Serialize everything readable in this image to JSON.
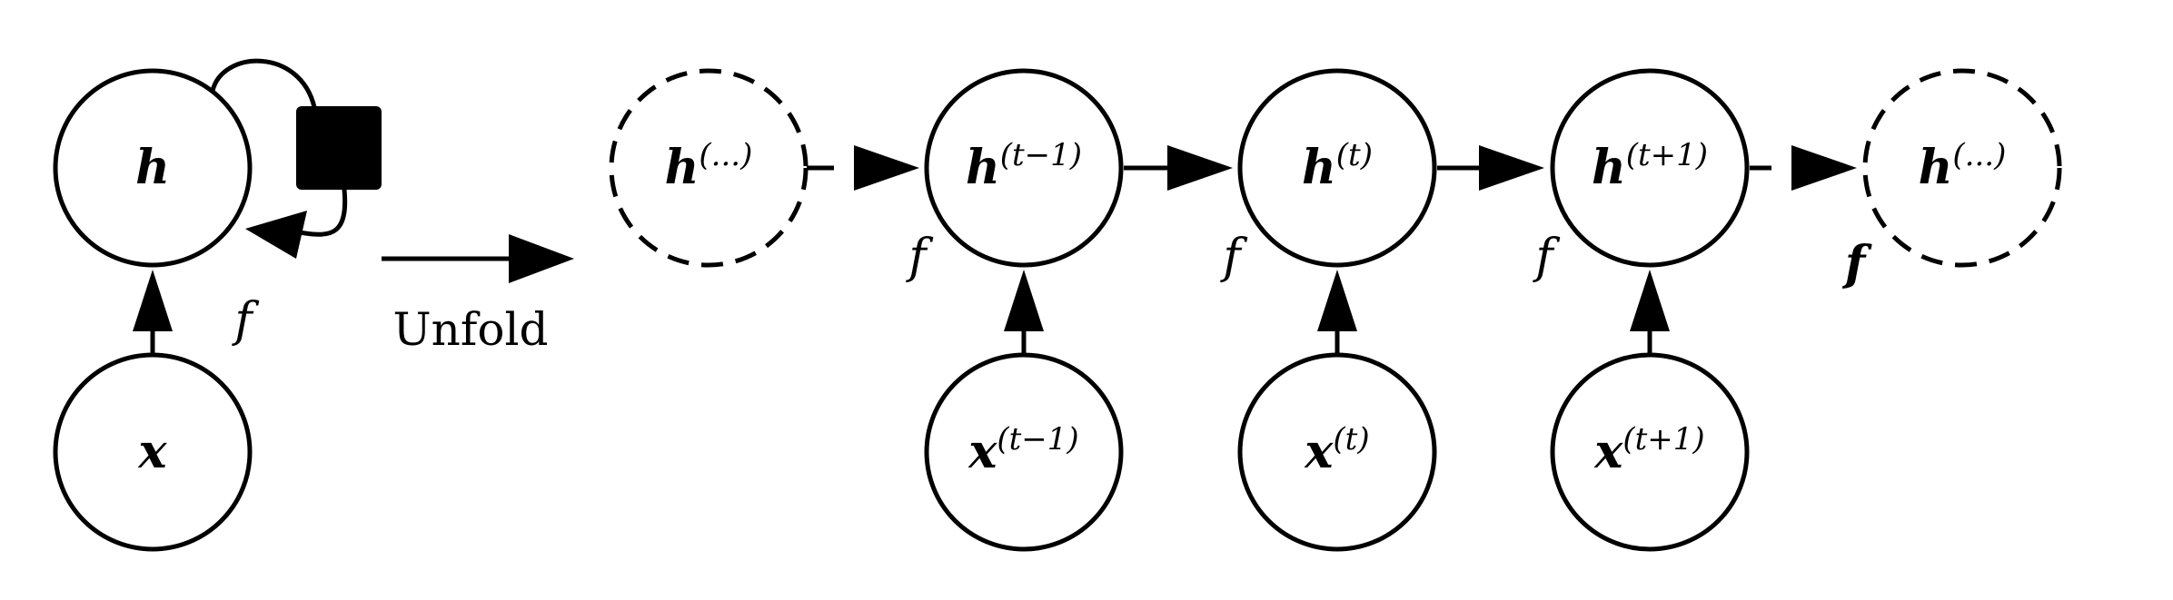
{
  "folded": {
    "hidden_label": "h",
    "input_label": "x",
    "function_label": "f"
  },
  "unfold_label": "Unfold",
  "unfolded": {
    "hidden_nodes": [
      {
        "main": "h",
        "sup": "(...)"
      },
      {
        "main": "h",
        "sup": "(t−1)"
      },
      {
        "main": "h",
        "sup": "(t)"
      },
      {
        "main": "h",
        "sup": "(t+1)"
      },
      {
        "main": "h",
        "sup": "(...)"
      }
    ],
    "input_nodes": [
      {
        "main": "x",
        "sup": "(t−1)"
      },
      {
        "main": "x",
        "sup": "(t)"
      },
      {
        "main": "x",
        "sup": "(t+1)"
      }
    ],
    "function_labels": [
      "f",
      "f",
      "f",
      "f"
    ]
  }
}
